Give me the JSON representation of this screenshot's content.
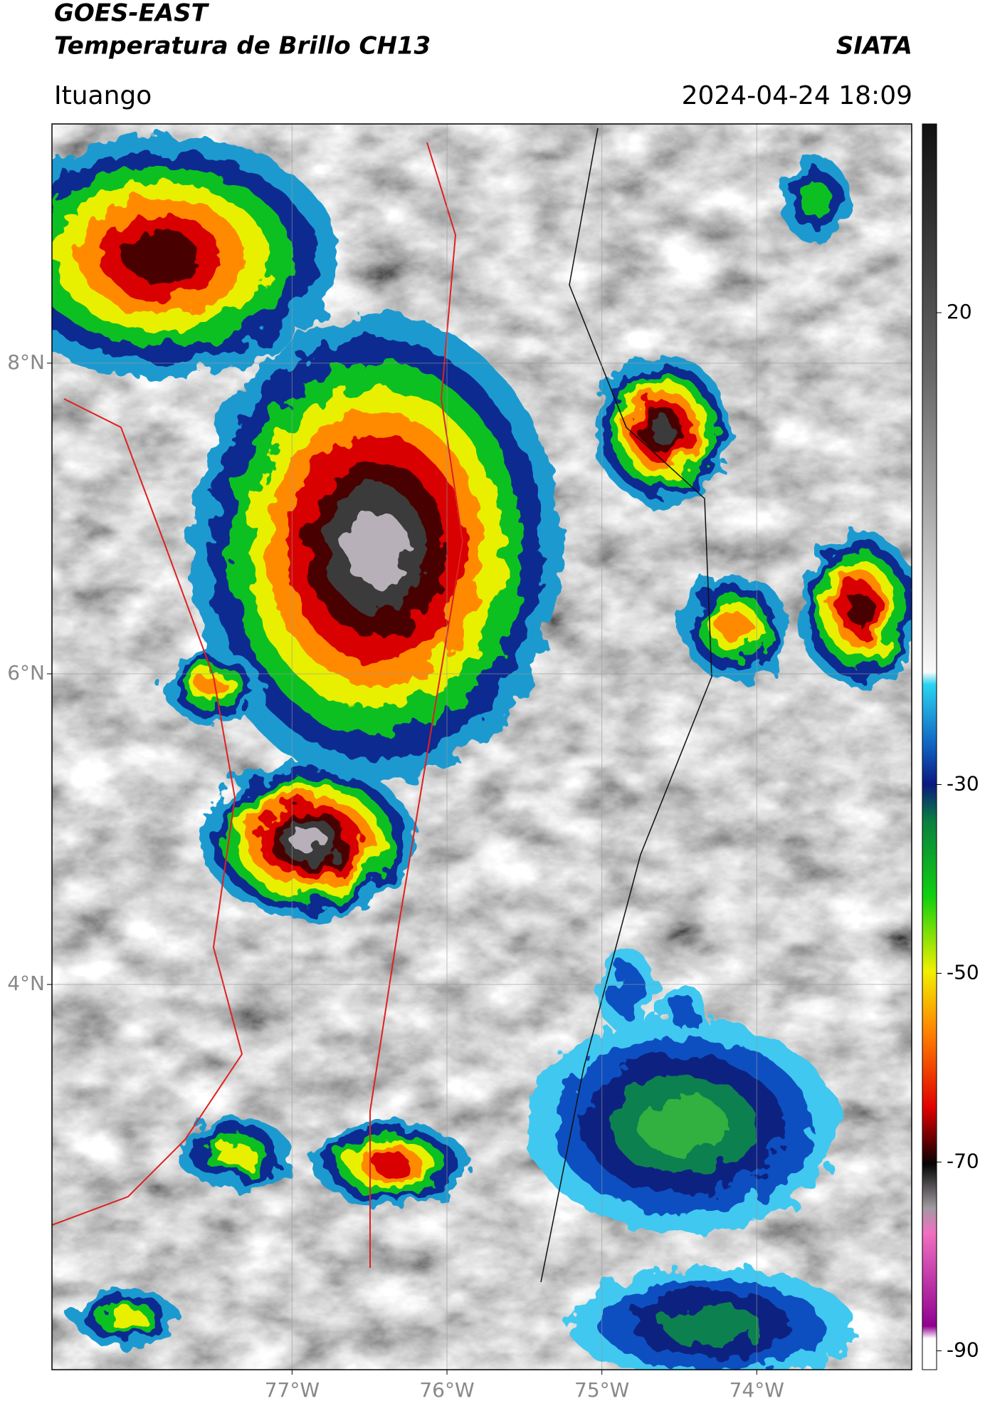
{
  "header": {
    "satellite": "GOES-EAST",
    "title": "Temperatura de Brillo CH13",
    "source": "SIATA",
    "region": "Ituango",
    "datetime": "2024-04-24 18:09"
  },
  "map": {
    "xlim": [
      -78.55,
      -73.0
    ],
    "ylim": [
      1.52,
      9.54
    ],
    "xticks": [
      {
        "value": -77,
        "label": "77°W"
      },
      {
        "value": -76,
        "label": "76°W"
      },
      {
        "value": -75,
        "label": "75°W"
      },
      {
        "value": -74,
        "label": "74°W"
      }
    ],
    "yticks": [
      {
        "value": 8,
        "label": "8°N"
      },
      {
        "value": 6,
        "label": "6°N"
      },
      {
        "value": 4,
        "label": "4°N"
      }
    ],
    "grid": true
  },
  "colorbar": {
    "clim": [
      -92,
      40
    ],
    "ticks": [
      20,
      -30,
      -50,
      -70,
      -90
    ]
  }
}
